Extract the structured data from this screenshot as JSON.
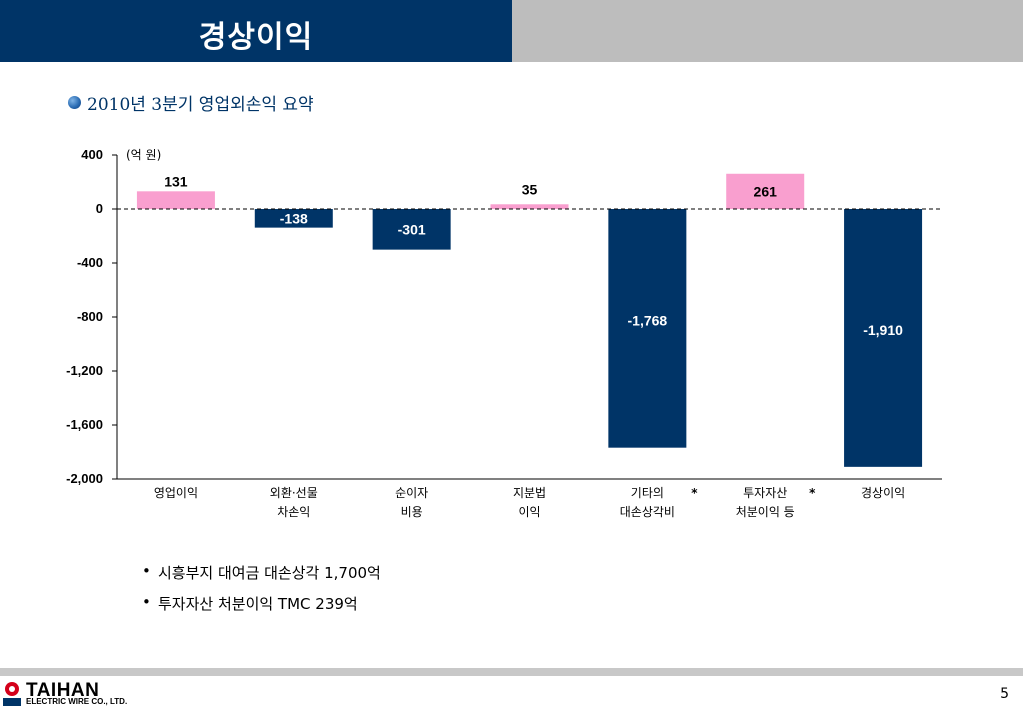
{
  "header": {
    "title": "경상이익"
  },
  "section": {
    "subtitle": "2010년 3분기 영업외손익 요약"
  },
  "chart_data": {
    "type": "bar",
    "unit": "(억 원)",
    "ylim": [
      -2000,
      400
    ],
    "yticks": [
      400,
      0,
      -400,
      -800,
      -1200,
      -1600,
      -2000
    ],
    "ytick_labels": [
      "400",
      "0",
      "-400",
      "-800",
      "-1,200",
      "-1,600",
      "-2,000"
    ],
    "categories": [
      {
        "lines": [
          "영업이익"
        ],
        "star": ""
      },
      {
        "lines": [
          "외환·선물",
          "차손익"
        ],
        "star": ""
      },
      {
        "lines": [
          "순이자",
          "비용"
        ],
        "star": ""
      },
      {
        "lines": [
          "지분법",
          "이익"
        ],
        "star": ""
      },
      {
        "lines": [
          "기타의",
          "대손상각비"
        ],
        "star": "*"
      },
      {
        "lines": [
          "투자자산",
          "처분이익 등"
        ],
        "star": "*"
      },
      {
        "lines": [
          "경상이익"
        ],
        "star": ""
      }
    ],
    "values": [
      131,
      -138,
      -301,
      35,
      -1768,
      261,
      -1910
    ],
    "value_labels": [
      "131",
      "-138",
      "-301",
      "35",
      "-1,768",
      "261",
      "-1,910"
    ],
    "colors": {
      "positive": "#f99fcf",
      "negative": "#003467",
      "label_on_dark": "#ffffff",
      "label_on_light": "#000000"
    }
  },
  "notes": [
    "시흥부지 대여금 대손상각 1,700억",
    "투자자산 처분이익 TMC 239억"
  ],
  "footer": {
    "logo_text": "TAIHAN",
    "logo_subtext": "ELECTRIC WIRE CO., LTD.",
    "page_number": "5"
  }
}
